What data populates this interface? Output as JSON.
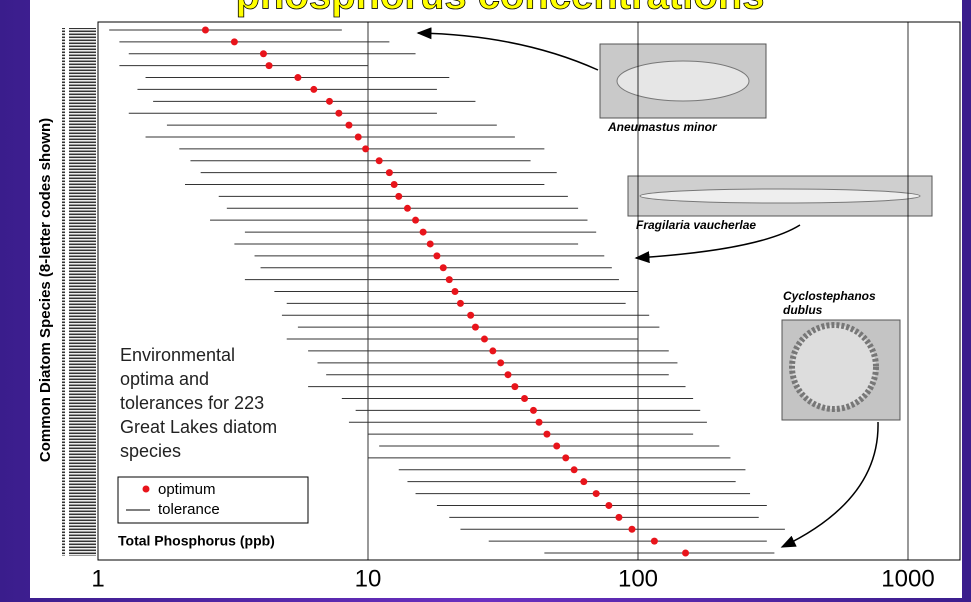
{
  "chart_data": {
    "type": "range",
    "title": "phosphorus concentrations",
    "ylabel": "Common Diatom Species (8-letter codes shown)",
    "xlabel": "Total Phosphorus (ppb)",
    "annotation": [
      "Environmental",
      "optima and",
      "tolerances for 223",
      "Great Lakes diatom",
      "species"
    ],
    "captions": [
      "Aneumastus minor",
      "Fragilaria vaucherlae",
      "Cyclostephanos",
      "dublus"
    ],
    "xlim": [
      1,
      1000
    ],
    "xticks": [
      1,
      10,
      100,
      1000
    ],
    "xlog": true,
    "grid": true,
    "series": [
      {
        "name": "optimum",
        "color": "#e8141b",
        "values": [
          2.5,
          3.2,
          4.1,
          4.3,
          5.5,
          6.3,
          7.2,
          7.8,
          8.5,
          9.2,
          9.8,
          11,
          12,
          12.5,
          13,
          14,
          15,
          16,
          17,
          18,
          19,
          20,
          21,
          22,
          24,
          25,
          27,
          29,
          31,
          33,
          35,
          38,
          41,
          43,
          46,
          50,
          54,
          58,
          63,
          70,
          78,
          85,
          95,
          115,
          150
        ]
      },
      {
        "name": "tolerance",
        "color": "#333333",
        "low": [
          1.1,
          1.2,
          1.3,
          1.2,
          1.5,
          1.4,
          1.6,
          1.3,
          1.8,
          1.5,
          2,
          2.2,
          2.4,
          2.1,
          2.8,
          3,
          2.6,
          3.5,
          3.2,
          3.8,
          4,
          3.5,
          4.5,
          5,
          4.8,
          5.5,
          5,
          6,
          6.5,
          7,
          6,
          8,
          9,
          8.5,
          10,
          11,
          10,
          13,
          14,
          15,
          18,
          20,
          22,
          28,
          45
        ],
        "high": [
          8,
          12,
          15,
          10,
          20,
          18,
          25,
          18,
          30,
          35,
          45,
          40,
          50,
          45,
          55,
          60,
          65,
          70,
          60,
          75,
          80,
          85,
          100,
          90,
          110,
          120,
          100,
          130,
          140,
          130,
          150,
          160,
          170,
          180,
          160,
          200,
          220,
          250,
          230,
          260,
          300,
          280,
          350,
          300,
          320
        ]
      }
    ]
  }
}
